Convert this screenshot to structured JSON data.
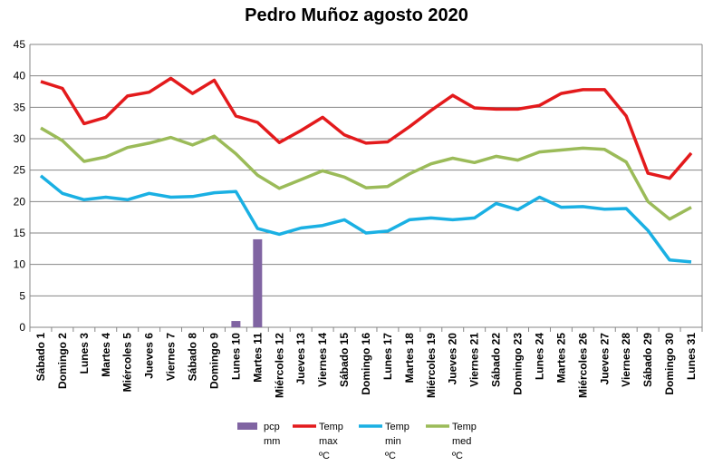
{
  "chart_data": {
    "type": "bar+line",
    "title": "Pedro Muñoz agosto 2020",
    "xlabel": "",
    "ylabel": "",
    "ylim": [
      0,
      45
    ],
    "yticks": [
      0,
      5,
      10,
      15,
      20,
      25,
      30,
      35,
      40,
      45
    ],
    "grid": true,
    "legend_position": "bottom",
    "categories": [
      "Sábado 1",
      "Domingo 2",
      "Lunes 3",
      "Martes 4",
      "Miércoles 5",
      "Jueves 6",
      "Viernes 7",
      "Sábado 8",
      "Domingo 9",
      "Lunes 10",
      "Martes 11",
      "Miércoles 12",
      "Jueves 13",
      "Viernes 14",
      "Sábado 15",
      "Domingo 16",
      "Lunes 17",
      "Martes 18",
      "Miércoles 19",
      "Jueves 20",
      "Viernes 21",
      "Sábado 22",
      "Domingo 23",
      "Lunes 24",
      "Martes 25",
      "Miércoles 26",
      "Jueves 27",
      "Viernes 28",
      "Sábado 29",
      "Domingo 30",
      "Lunes 31"
    ],
    "series": [
      {
        "kind": "bar",
        "legend_lines": [
          "pcp",
          "mm"
        ],
        "color": "#8064A2",
        "values": [
          0,
          0,
          0,
          0,
          0,
          0,
          0,
          0,
          0,
          1.0,
          14.0,
          0,
          0,
          0,
          0,
          0,
          0,
          0,
          0,
          0,
          0,
          0,
          0,
          0,
          0,
          0,
          0,
          0,
          0,
          0,
          0
        ]
      },
      {
        "kind": "line",
        "legend_lines": [
          "Temp",
          "max",
          "ºC"
        ],
        "color": "#E31A1C",
        "values": [
          39.1,
          38.0,
          32.4,
          33.4,
          36.8,
          37.4,
          39.6,
          37.2,
          39.3,
          33.6,
          32.6,
          29.4,
          31.3,
          33.4,
          30.6,
          29.3,
          29.5,
          31.9,
          34.5,
          36.9,
          34.9,
          34.7,
          34.7,
          35.3,
          37.2,
          37.8,
          37.8,
          33.6,
          24.5,
          23.7,
          27.7
        ]
      },
      {
        "kind": "line",
        "legend_lines": [
          "Temp",
          "min",
          "ºC"
        ],
        "color": "#1AB0E3",
        "values": [
          24.1,
          21.3,
          20.3,
          20.7,
          20.3,
          21.3,
          20.7,
          20.8,
          21.4,
          21.6,
          15.7,
          14.8,
          15.8,
          16.2,
          17.1,
          15.0,
          15.3,
          17.1,
          17.4,
          17.1,
          17.4,
          19.7,
          18.7,
          20.7,
          19.1,
          19.2,
          18.8,
          18.9,
          15.4,
          10.7,
          10.4
        ]
      },
      {
        "kind": "line",
        "legend_lines": [
          "Temp",
          "med",
          "ºC"
        ],
        "color": "#9BBB59",
        "values": [
          31.7,
          29.7,
          26.4,
          27.1,
          28.6,
          29.3,
          30.2,
          29.0,
          30.4,
          27.6,
          24.2,
          22.1,
          23.5,
          24.9,
          23.9,
          22.2,
          22.4,
          24.4,
          26.0,
          26.9,
          26.2,
          27.2,
          26.6,
          27.9,
          28.2,
          28.5,
          28.3,
          26.3,
          20.0,
          17.2,
          19.1
        ]
      }
    ]
  }
}
